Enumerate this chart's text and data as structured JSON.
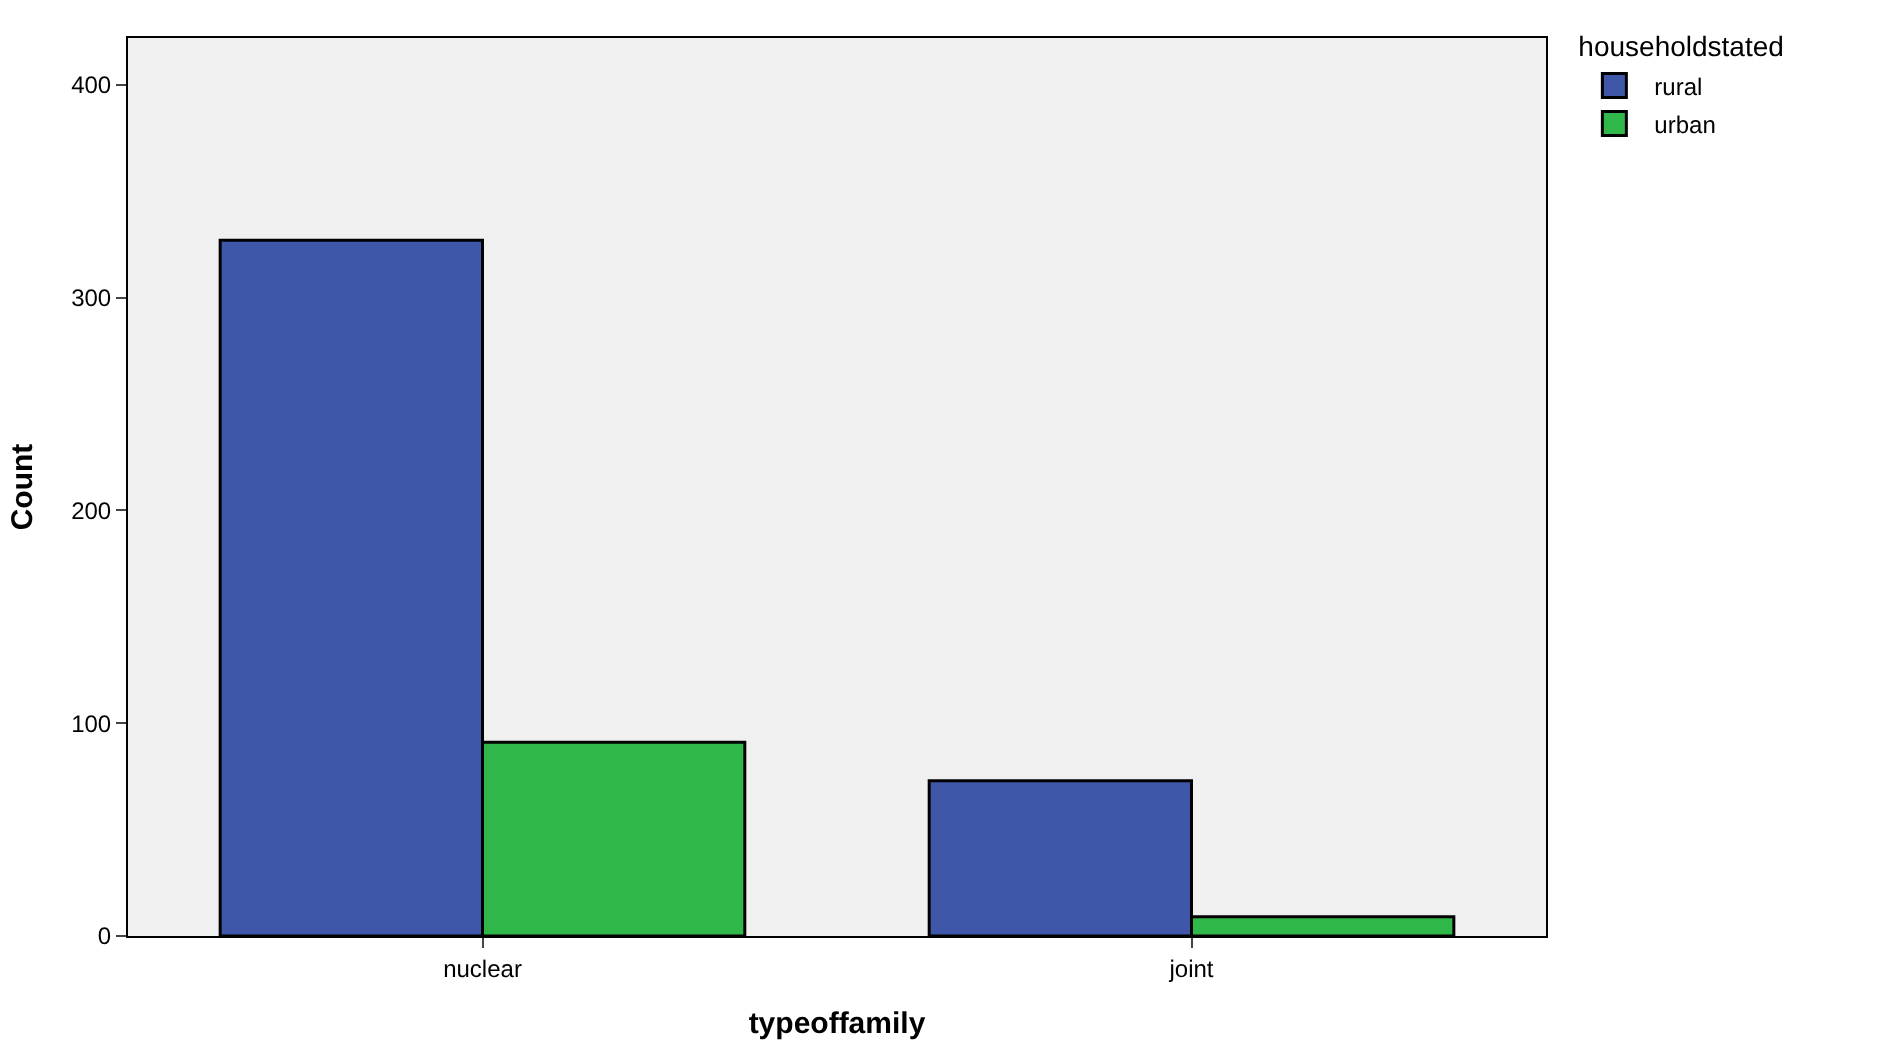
{
  "chart_data": {
    "type": "bar",
    "xlabel": "typeoffamily",
    "ylabel": "Count",
    "legend_title": "householdstated",
    "categories": [
      "nuclear",
      "joint"
    ],
    "series": [
      {
        "name": "rural",
        "color": "#3f57a9",
        "values": [
          327,
          73
        ]
      },
      {
        "name": "urban",
        "color": "#30b74a",
        "values": [
          91,
          9
        ]
      }
    ],
    "ylim": [
      0,
      422
    ],
    "yticks": [
      0,
      100,
      200,
      300,
      400
    ],
    "grid": false,
    "legend": "top right"
  }
}
